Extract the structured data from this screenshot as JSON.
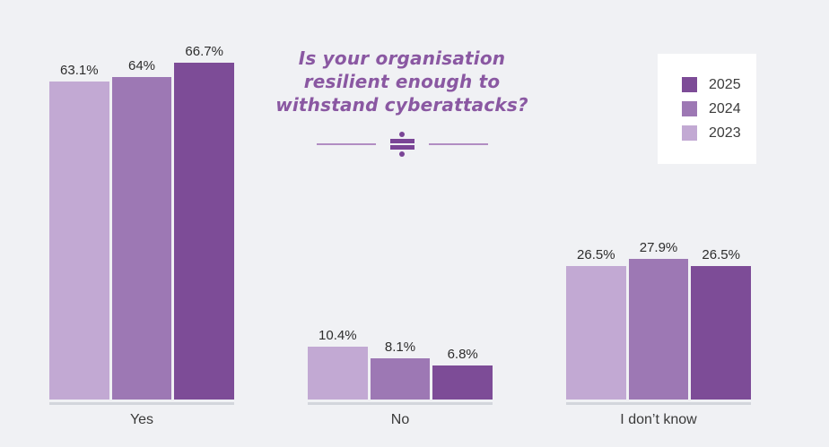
{
  "colors": {
    "background": "#f0f1f4",
    "title_text": "#8a58a2",
    "divider_line": "#b18dc2",
    "divider_symbol": "#7a4596",
    "axis_line": "#d3d6dc",
    "value_text": "#2d2d2d",
    "category_text": "#3a3a3a",
    "legend_background": "#ffffff",
    "series_2025": "#7d4c97",
    "series_2024": "#9d78b4",
    "series_2023": "#c2a9d3"
  },
  "title": {
    "lines": [
      "Is your organisation",
      "resilient enough to",
      "withstand cyberattacks?"
    ]
  },
  "legend": {
    "items": [
      {
        "label": "2025",
        "color": "#7d4c97"
      },
      {
        "label": "2024",
        "color": "#9d78b4"
      },
      {
        "label": "2023",
        "color": "#c2a9d3"
      }
    ]
  },
  "chart_data": {
    "type": "bar",
    "title": "Is your organisation resilient enough to withstand cyberattacks?",
    "categories": [
      "Yes",
      "No",
      "I don’t know"
    ],
    "series": [
      {
        "name": "2023",
        "color": "#c2a9d3",
        "values": [
          63.1,
          10.4,
          26.5
        ],
        "labels": [
          "63.1%",
          "10.4%",
          "26.5%"
        ]
      },
      {
        "name": "2024",
        "color": "#9d78b4",
        "values": [
          64,
          8.1,
          27.9
        ],
        "labels": [
          "64%",
          "8.1%",
          "27.9%"
        ]
      },
      {
        "name": "2025",
        "color": "#7d4c97",
        "values": [
          66.7,
          6.8,
          26.5
        ],
        "labels": [
          "66.7%",
          "6.8%",
          "26.5%"
        ]
      }
    ],
    "unit": "%",
    "ylim": [
      0,
      70
    ],
    "grid": false,
    "value_labels": "above-bars",
    "legend_position": "top-right",
    "legend_order": [
      "2025",
      "2024",
      "2023"
    ]
  }
}
